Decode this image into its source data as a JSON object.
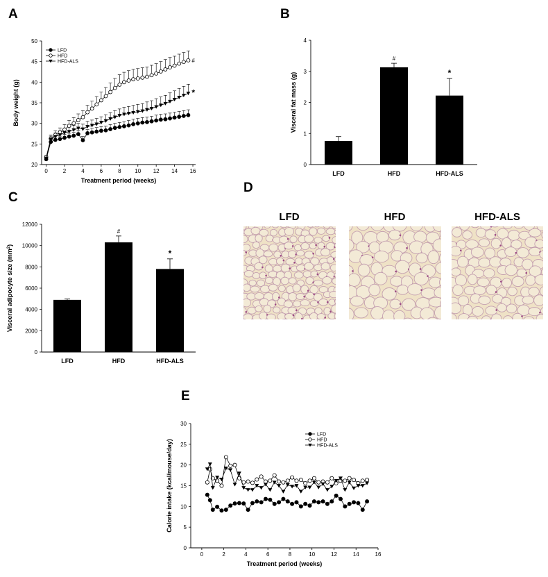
{
  "panels": {
    "A": "A",
    "B": "B",
    "C": "C",
    "D": "D",
    "E": "E"
  },
  "histology": {
    "titles": [
      "LFD",
      "HFD",
      "HFD-ALS"
    ],
    "colors": {
      "background": "#efe2c6",
      "membrane": "#b58aa6",
      "nuclei": "#9c4a83"
    }
  },
  "colors": {
    "lfd": "#000000",
    "hfd": "#ffffff",
    "als": "#000000",
    "bar": "#000000",
    "axis": "#000000"
  },
  "chart_data": [
    {
      "id": "A",
      "type": "line",
      "xlabel": "Treatment period (weeks)",
      "ylabel": "Body weight (g)",
      "xlim": [
        -0.5,
        16.3
      ],
      "ylim": [
        20,
        50
      ],
      "xticks": [
        0,
        2,
        4,
        6,
        8,
        10,
        12,
        14,
        16
      ],
      "yticks": [
        20,
        25,
        30,
        35,
        40,
        45,
        50
      ],
      "legend": {
        "position": "top-left",
        "entries": [
          "LFD",
          "HFD",
          "HFD-ALS"
        ]
      },
      "annotations": [
        {
          "text": "#",
          "series": "HFD"
        },
        {
          "text": "*",
          "series": "HFD-ALS"
        }
      ],
      "series": [
        {
          "name": "LFD",
          "marker": "filled-circle",
          "x": [
            0,
            0.5,
            1,
            1.5,
            2,
            2.5,
            3,
            3.5,
            4,
            4.5,
            5,
            5.5,
            6,
            6.5,
            7,
            7.5,
            8,
            8.5,
            9,
            9.5,
            10,
            10.5,
            11,
            11.5,
            12,
            12.5,
            13,
            13.5,
            14,
            14.5,
            15,
            15.5
          ],
          "y": [
            21.3,
            25.5,
            26.0,
            26.2,
            26.5,
            26.8,
            27.0,
            27.4,
            25.9,
            27.6,
            27.8,
            28.0,
            28.2,
            28.3,
            28.6,
            28.9,
            29.1,
            29.3,
            29.5,
            29.8,
            30.0,
            30.2,
            30.3,
            30.5,
            30.7,
            30.9,
            31.0,
            31.2,
            31.4,
            31.6,
            31.8,
            32.0
          ],
          "err": [
            0.3,
            0.6,
            0.7,
            0.7,
            0.8,
            0.8,
            0.8,
            0.9,
            0.9,
            0.9,
            1.0,
            1.0,
            1.0,
            1.0,
            1.1,
            1.1,
            1.1,
            1.1,
            1.2,
            1.2,
            1.2,
            1.2,
            1.2,
            1.2,
            1.3,
            1.3,
            1.3,
            1.3,
            1.3,
            1.3,
            1.3,
            1.3
          ]
        },
        {
          "name": "HFD",
          "marker": "open-circle",
          "x": [
            0,
            0.5,
            1,
            1.5,
            2,
            2.5,
            3,
            3.5,
            4,
            4.5,
            5,
            5.5,
            6,
            6.5,
            7,
            7.5,
            8,
            8.5,
            9,
            9.5,
            10,
            10.5,
            11,
            11.5,
            12,
            12.5,
            13,
            13.5,
            14,
            14.5,
            15,
            15.5
          ],
          "y": [
            21.8,
            26.3,
            27.2,
            27.8,
            28.5,
            29.4,
            30.0,
            30.8,
            31.5,
            32.7,
            33.6,
            34.6,
            35.6,
            36.6,
            37.6,
            38.6,
            39.4,
            40.0,
            40.4,
            40.7,
            40.9,
            41.1,
            41.3,
            41.7,
            42.1,
            42.6,
            43.1,
            43.6,
            44.0,
            44.5,
            44.9,
            45.3
          ],
          "err": [
            0.4,
            0.9,
            1.0,
            1.1,
            1.2,
            1.3,
            1.4,
            1.5,
            1.6,
            1.7,
            1.8,
            1.9,
            2.0,
            2.1,
            2.2,
            2.3,
            2.4,
            2.4,
            2.4,
            2.4,
            2.4,
            2.4,
            2.4,
            2.4,
            2.4,
            2.4,
            2.4,
            2.4,
            2.3,
            2.3,
            2.3,
            2.3
          ]
        },
        {
          "name": "HFD-ALS",
          "marker": "filled-triangle-down",
          "x": [
            0,
            0.5,
            1,
            1.5,
            2,
            2.5,
            3,
            3.5,
            4,
            4.5,
            5,
            5.5,
            6,
            6.5,
            7,
            7.5,
            8,
            8.5,
            9,
            9.5,
            10,
            10.5,
            11,
            11.5,
            12,
            12.5,
            13,
            13.5,
            14,
            14.5,
            15,
            15.5
          ],
          "y": [
            21.5,
            26.1,
            26.8,
            27.2,
            27.7,
            28.0,
            28.4,
            28.8,
            28.6,
            29.2,
            29.5,
            29.8,
            30.2,
            30.6,
            31.1,
            31.5,
            31.9,
            32.2,
            32.4,
            32.6,
            32.8,
            33.0,
            33.3,
            33.6,
            34.0,
            34.4,
            34.8,
            35.3,
            35.8,
            36.3,
            36.8,
            37.3
          ],
          "err": [
            0.3,
            0.8,
            0.9,
            1.0,
            1.0,
            1.1,
            1.1,
            1.2,
            1.2,
            1.3,
            1.3,
            1.4,
            1.4,
            1.5,
            1.5,
            1.6,
            1.6,
            1.7,
            1.7,
            1.8,
            1.8,
            1.8,
            1.9,
            1.9,
            2.0,
            2.0,
            2.0,
            2.1,
            2.1,
            2.2,
            2.2,
            2.2
          ]
        }
      ]
    },
    {
      "id": "B",
      "type": "bar",
      "xlabel": "",
      "ylabel": "Visceral fat mass (g)",
      "ylim": [
        0,
        4
      ],
      "yticks": [
        0,
        1,
        2,
        3,
        4
      ],
      "categories": [
        "LFD",
        "HFD",
        "HFD-ALS"
      ],
      "values": [
        0.76,
        3.13,
        2.22
      ],
      "errors": [
        0.14,
        0.13,
        0.55
      ],
      "annotations": [
        "",
        "#",
        "*"
      ]
    },
    {
      "id": "C",
      "type": "bar",
      "xlabel": "",
      "ylabel": "Visceral adipocyte size (mm",
      "ylabel_sup": "2",
      "ylabel_tail": ")",
      "ylim": [
        0,
        12000
      ],
      "yticks": [
        0,
        2000,
        4000,
        6000,
        8000,
        10000,
        12000
      ],
      "categories": [
        "LFD",
        "HFD",
        "HFD-ALS"
      ],
      "values": [
        4900,
        10300,
        7800
      ],
      "errors": [
        80,
        600,
        950
      ],
      "annotations": [
        "",
        "#",
        "*"
      ]
    },
    {
      "id": "E",
      "type": "line",
      "xlabel": "Treatment period (weeks)",
      "ylabel": "Calorie intake (kcal/mouse/day)",
      "xlim": [
        -1,
        16
      ],
      "ylim": [
        0,
        30
      ],
      "xticks": [
        0,
        2,
        4,
        6,
        8,
        10,
        12,
        14,
        16
      ],
      "yticks": [
        0,
        5,
        10,
        15,
        20,
        25,
        30
      ],
      "legend": {
        "position": "top-right",
        "entries": [
          "LFD",
          "HFD",
          "HFD-ALS"
        ]
      },
      "series": [
        {
          "name": "LFD",
          "marker": "filled-circle",
          "x": [
            0.5,
            0.75,
            1,
            1.4,
            1.8,
            2.2,
            2.6,
            3,
            3.4,
            3.8,
            4.2,
            4.6,
            5,
            5.4,
            5.8,
            6.2,
            6.6,
            7,
            7.4,
            7.8,
            8.2,
            8.6,
            9,
            9.4,
            9.8,
            10.2,
            10.6,
            11,
            11.4,
            11.8,
            12.2,
            12.6,
            13,
            13.4,
            13.8,
            14.2,
            14.6,
            15
          ],
          "y": [
            12.8,
            11.5,
            9.2,
            9.9,
            9.0,
            9.2,
            10.2,
            10.7,
            10.8,
            10.7,
            9.2,
            10.8,
            11.2,
            11.0,
            11.8,
            11.6,
            10.6,
            11.0,
            11.8,
            11.2,
            10.6,
            11.0,
            10.0,
            10.6,
            10.2,
            11.2,
            11.0,
            11.2,
            10.6,
            11.2,
            12.6,
            11.8,
            10.0,
            10.6,
            11.0,
            10.8,
            9.2,
            11.2
          ]
        },
        {
          "name": "HFD",
          "marker": "open-circle",
          "x": [
            0.5,
            0.75,
            1,
            1.4,
            1.8,
            2.2,
            2.6,
            3,
            3.4,
            3.8,
            4.2,
            4.6,
            5,
            5.4,
            5.8,
            6.2,
            6.6,
            7,
            7.4,
            7.8,
            8.2,
            8.6,
            9,
            9.4,
            9.8,
            10.2,
            10.6,
            11,
            11.4,
            11.8,
            12.2,
            12.6,
            13,
            13.4,
            13.8,
            14.2,
            14.6,
            15
          ],
          "y": [
            15.8,
            19.0,
            16.8,
            16.2,
            15.0,
            21.9,
            19.8,
            20.0,
            16.8,
            15.8,
            16.0,
            15.7,
            16.5,
            17.2,
            16.0,
            16.2,
            17.5,
            16.0,
            15.8,
            16.2,
            17.0,
            16.2,
            16.4,
            15.6,
            16.2,
            16.8,
            15.8,
            16.0,
            15.8,
            16.8,
            15.6,
            16.2,
            16.2,
            16.8,
            16.4,
            15.6,
            16.2,
            16.4
          ]
        },
        {
          "name": "HFD-ALS",
          "marker": "filled-triangle-down",
          "x": [
            0.5,
            0.75,
            1,
            1.4,
            1.8,
            2.2,
            2.6,
            3,
            3.4,
            3.8,
            4.2,
            4.6,
            5,
            5.4,
            5.8,
            6.2,
            6.6,
            7,
            7.4,
            7.8,
            8.2,
            8.6,
            9,
            9.4,
            9.8,
            10.2,
            10.6,
            11,
            11.4,
            11.8,
            12.2,
            12.6,
            13,
            13.4,
            13.8,
            14.2,
            14.6,
            15
          ],
          "y": [
            19.0,
            20.2,
            14.5,
            17.0,
            16.5,
            19.2,
            18.8,
            15.3,
            18.0,
            14.5,
            14.0,
            14.0,
            15.0,
            14.5,
            15.3,
            14.0,
            15.8,
            15.0,
            13.6,
            15.2,
            14.8,
            15.0,
            13.6,
            14.6,
            14.6,
            15.8,
            14.6,
            15.4,
            14.0,
            14.8,
            16.2,
            16.8,
            14.0,
            15.8,
            14.4,
            15.0,
            15.0,
            15.6
          ]
        }
      ]
    }
  ]
}
